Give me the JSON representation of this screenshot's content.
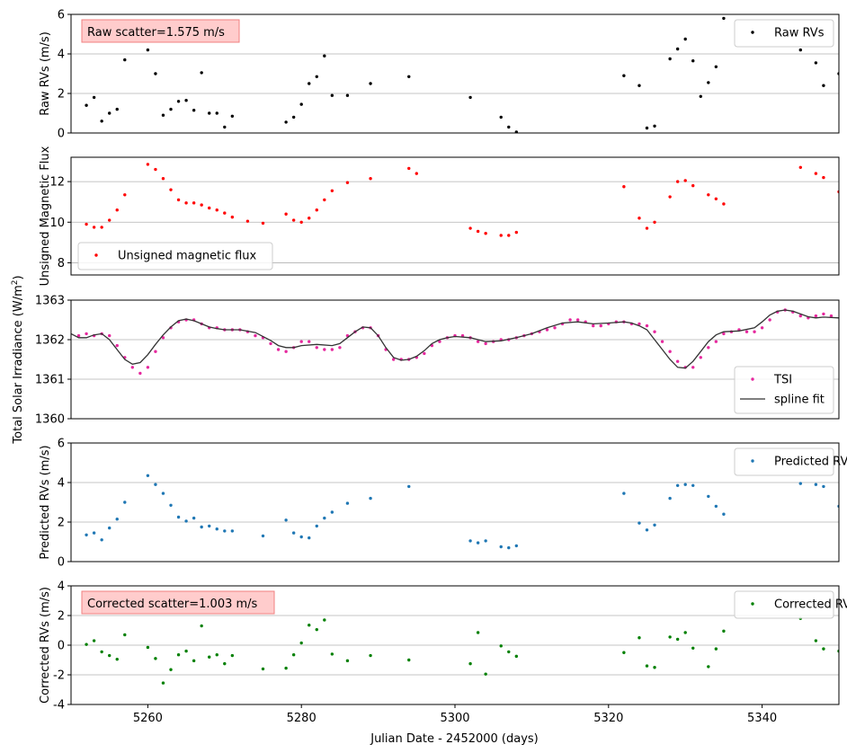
{
  "figure": {
    "xlabel": "Julian Date - 2452000 (days)"
  },
  "chart_data": [
    {
      "type": "scatter",
      "ylabel": "Raw RVs (m/s)",
      "xlim": [
        5250,
        5350
      ],
      "ylim": [
        0,
        6
      ],
      "yticks": [
        0,
        2,
        4,
        6
      ],
      "grid": "horizontal",
      "annotation": "Raw scatter=1.575 m/s",
      "legend_position": "top-right",
      "series": [
        {
          "name": "Raw RVs",
          "color": "#000000",
          "style": "points",
          "x": [
            5252,
            5253,
            5254,
            5255,
            5256,
            5257,
            5260,
            5261,
            5262,
            5263,
            5264,
            5265,
            5266,
            5267,
            5268,
            5269,
            5270,
            5271,
            5278,
            5279,
            5280,
            5281,
            5282,
            5283,
            5284,
            5286,
            5289,
            5294,
            5302,
            5306,
            5307,
            5308,
            5322,
            5324,
            5325,
            5326,
            5328,
            5329,
            5330,
            5331,
            5332,
            5333,
            5334,
            5335,
            5345,
            5347,
            5348,
            5350
          ],
          "y": [
            1.4,
            1.8,
            0.6,
            1.0,
            1.2,
            3.7,
            4.2,
            3.0,
            0.9,
            1.2,
            1.6,
            1.65,
            1.15,
            3.05,
            1.0,
            1.0,
            0.3,
            0.85,
            0.55,
            0.8,
            1.45,
            2.5,
            2.85,
            3.9,
            1.9,
            1.9,
            2.5,
            2.85,
            1.8,
            0.8,
            0.3,
            0.05,
            2.9,
            2.4,
            0.25,
            0.35,
            3.75,
            4.25,
            4.75,
            3.65,
            1.85,
            2.55,
            3.35,
            5.8,
            4.2,
            3.55,
            2.4,
            3.0
          ]
        }
      ]
    },
    {
      "type": "scatter",
      "ylabel": "Unsigned Magnetic Flux",
      "xlim": [
        5250,
        5350
      ],
      "ylim": [
        7.4,
        13.2
      ],
      "yticks": [
        8,
        10,
        12
      ],
      "grid": "horizontal",
      "legend_position": "bottom-left",
      "series": [
        {
          "name": "Unsigned magnetic flux",
          "color": "#ff0000",
          "style": "points",
          "x": [
            5252,
            5253,
            5254,
            5255,
            5256,
            5257,
            5260,
            5261,
            5262,
            5263,
            5264,
            5265,
            5266,
            5267,
            5268,
            5269,
            5270,
            5271,
            5273,
            5275,
            5278,
            5279,
            5280,
            5281,
            5282,
            5283,
            5284,
            5286,
            5289,
            5294,
            5295,
            5302,
            5303,
            5304,
            5306,
            5307,
            5308,
            5322,
            5324,
            5325,
            5326,
            5328,
            5329,
            5330,
            5331,
            5333,
            5334,
            5335,
            5345,
            5347,
            5348,
            5350
          ],
          "y": [
            9.9,
            9.75,
            9.75,
            10.1,
            10.6,
            11.35,
            12.85,
            12.6,
            12.15,
            11.6,
            11.1,
            10.95,
            10.95,
            10.85,
            10.7,
            10.6,
            10.45,
            10.25,
            10.05,
            9.95,
            10.4,
            10.1,
            10.0,
            10.2,
            10.6,
            11.1,
            11.55,
            11.95,
            12.15,
            12.65,
            12.4,
            9.7,
            9.55,
            9.45,
            9.35,
            9.35,
            9.5,
            11.75,
            10.2,
            9.7,
            10.0,
            11.25,
            12.0,
            12.05,
            11.8,
            11.35,
            11.15,
            10.9,
            12.7,
            12.4,
            12.2,
            11.5
          ]
        }
      ]
    },
    {
      "type": "scatter",
      "ylabel": "Total Solar Irradiance (W/m",
      "ylabel_sup": "2",
      "ylabel_end": ")",
      "xlim": [
        5250,
        5350
      ],
      "ylim": [
        1360,
        1363
      ],
      "yticks": [
        1360,
        1361,
        1362,
        1363
      ],
      "grid": "horizontal",
      "legend_position": "bottom-right",
      "series": [
        {
          "name": "TSI",
          "color": "#e6289e",
          "style": "points",
          "x": [
            5251,
            5252,
            5253,
            5254,
            5255,
            5256,
            5257,
            5258,
            5259,
            5260,
            5261,
            5262,
            5263,
            5264,
            5265,
            5266,
            5267,
            5268,
            5269,
            5270,
            5271,
            5272,
            5273,
            5274,
            5275,
            5276,
            5277,
            5278,
            5279,
            5280,
            5281,
            5282,
            5283,
            5284,
            5285,
            5286,
            5287,
            5288,
            5289,
            5290,
            5291,
            5292,
            5293,
            5294,
            5295,
            5296,
            5297,
            5298,
            5299,
            5300,
            5301,
            5302,
            5303,
            5304,
            5305,
            5306,
            5307,
            5308,
            5309,
            5310,
            5311,
            5312,
            5313,
            5314,
            5315,
            5316,
            5317,
            5318,
            5319,
            5320,
            5321,
            5322,
            5323,
            5324,
            5325,
            5326,
            5327,
            5328,
            5329,
            5330,
            5331,
            5332,
            5333,
            5334,
            5335,
            5336,
            5337,
            5338,
            5339,
            5340,
            5341,
            5342,
            5343,
            5344,
            5345,
            5346,
            5347,
            5348,
            5349
          ],
          "y": [
            1362.1,
            1362.15,
            1362.1,
            1362.15,
            1362.1,
            1361.85,
            1361.55,
            1361.3,
            1361.15,
            1361.3,
            1361.7,
            1362.05,
            1362.3,
            1362.45,
            1362.5,
            1362.5,
            1362.4,
            1362.3,
            1362.3,
            1362.25,
            1362.25,
            1362.25,
            1362.2,
            1362.1,
            1362.05,
            1361.9,
            1361.75,
            1361.7,
            1361.8,
            1361.95,
            1361.95,
            1361.8,
            1361.75,
            1361.75,
            1361.8,
            1362.1,
            1362.2,
            1362.3,
            1362.3,
            1362.1,
            1361.75,
            1361.5,
            1361.5,
            1361.5,
            1361.55,
            1361.65,
            1361.85,
            1361.95,
            1362.05,
            1362.1,
            1362.1,
            1362.05,
            1361.95,
            1361.9,
            1361.95,
            1362.0,
            1362.0,
            1362.05,
            1362.1,
            1362.15,
            1362.2,
            1362.25,
            1362.3,
            1362.4,
            1362.5,
            1362.5,
            1362.45,
            1362.35,
            1362.35,
            1362.4,
            1362.45,
            1362.45,
            1362.4,
            1362.4,
            1362.35,
            1362.2,
            1361.95,
            1361.7,
            1361.45,
            1361.3,
            1361.3,
            1361.55,
            1361.8,
            1361.95,
            1362.15,
            1362.2,
            1362.25,
            1362.2,
            1362.2,
            1362.3,
            1362.5,
            1362.7,
            1362.75,
            1362.7,
            1362.6,
            1362.55,
            1362.6,
            1362.65,
            1362.6
          ]
        },
        {
          "name": "spline fit",
          "color": "#333333",
          "style": "line",
          "x": [
            5250,
            5251,
            5252,
            5253,
            5254,
            5255,
            5256,
            5257,
            5258,
            5259,
            5260,
            5261,
            5262,
            5263,
            5264,
            5265,
            5266,
            5267,
            5268,
            5269,
            5270,
            5272,
            5274,
            5276,
            5277,
            5278,
            5279,
            5280,
            5282,
            5284,
            5285,
            5286,
            5287,
            5288,
            5289,
            5290,
            5291,
            5292,
            5293,
            5294,
            5295,
            5296,
            5297,
            5298,
            5299,
            5300,
            5302,
            5304,
            5306,
            5308,
            5310,
            5312,
            5314,
            5316,
            5318,
            5320,
            5322,
            5323,
            5324,
            5325,
            5326,
            5327,
            5328,
            5329,
            5330,
            5331,
            5332,
            5333,
            5334,
            5335,
            5337,
            5339,
            5340,
            5341,
            5342,
            5343,
            5344,
            5345,
            5346,
            5347,
            5348,
            5350
          ],
          "y": [
            1362.15,
            1362.05,
            1362.05,
            1362.12,
            1362.15,
            1362.0,
            1361.75,
            1361.5,
            1361.38,
            1361.42,
            1361.62,
            1361.88,
            1362.12,
            1362.32,
            1362.48,
            1362.52,
            1362.48,
            1362.4,
            1362.32,
            1362.28,
            1362.25,
            1362.25,
            1362.18,
            1361.98,
            1361.85,
            1361.8,
            1361.8,
            1361.85,
            1361.88,
            1361.85,
            1361.9,
            1362.05,
            1362.2,
            1362.32,
            1362.3,
            1362.1,
            1361.8,
            1361.55,
            1361.48,
            1361.5,
            1361.58,
            1361.72,
            1361.9,
            1362.0,
            1362.05,
            1362.08,
            1362.05,
            1361.95,
            1361.97,
            1362.05,
            1362.15,
            1362.3,
            1362.42,
            1362.45,
            1362.4,
            1362.42,
            1362.45,
            1362.42,
            1362.35,
            1362.25,
            1362.0,
            1361.75,
            1361.5,
            1361.3,
            1361.28,
            1361.45,
            1361.7,
            1361.95,
            1362.12,
            1362.2,
            1362.22,
            1362.3,
            1362.45,
            1362.62,
            1362.72,
            1362.75,
            1362.72,
            1362.65,
            1362.58,
            1362.55,
            1362.57,
            1362.55
          ]
        }
      ]
    },
    {
      "type": "scatter",
      "ylabel": "Predicted RVs (m/s)",
      "xlim": [
        5250,
        5350
      ],
      "ylim": [
        0,
        6
      ],
      "yticks": [
        0,
        2,
        4,
        6
      ],
      "grid": "horizontal",
      "legend_position": "top-right",
      "series": [
        {
          "name": "Predicted RVs",
          "color": "#1f77b4",
          "style": "points",
          "x": [
            5252,
            5253,
            5254,
            5255,
            5256,
            5257,
            5260,
            5261,
            5262,
            5263,
            5264,
            5265,
            5266,
            5267,
            5268,
            5269,
            5270,
            5271,
            5275,
            5278,
            5279,
            5280,
            5281,
            5282,
            5283,
            5284,
            5286,
            5289,
            5294,
            5302,
            5303,
            5304,
            5306,
            5307,
            5308,
            5322,
            5324,
            5325,
            5326,
            5328,
            5329,
            5330,
            5331,
            5333,
            5334,
            5335,
            5345,
            5347,
            5348,
            5350
          ],
          "y": [
            1.35,
            1.45,
            1.1,
            1.7,
            2.15,
            3.0,
            4.35,
            3.9,
            3.45,
            2.85,
            2.25,
            2.05,
            2.2,
            1.75,
            1.8,
            1.65,
            1.55,
            1.55,
            1.3,
            2.1,
            1.45,
            1.25,
            1.2,
            1.8,
            2.2,
            2.5,
            2.95,
            3.2,
            3.8,
            1.05,
            0.95,
            1.05,
            0.75,
            0.7,
            0.8,
            3.45,
            1.95,
            1.6,
            1.85,
            3.2,
            3.85,
            3.9,
            3.85,
            3.3,
            2.8,
            2.4,
            3.95,
            3.9,
            3.8,
            2.8
          ]
        }
      ]
    },
    {
      "type": "scatter",
      "ylabel": "Corrected RVs (m/s)",
      "xlabel": "Julian Date - 2452000 (days)",
      "xlim": [
        5250,
        5350
      ],
      "ylim": [
        -4,
        4
      ],
      "yticks": [
        -4,
        -2,
        0,
        2,
        4
      ],
      "xticks": [
        5260,
        5280,
        5300,
        5320,
        5340
      ],
      "grid": "horizontal",
      "annotation": "Corrected scatter=1.003 m/s",
      "legend_position": "top-right",
      "series": [
        {
          "name": "Corrected RVs",
          "color": "#008000",
          "style": "points",
          "x": [
            5252,
            5253,
            5254,
            5255,
            5256,
            5257,
            5260,
            5261,
            5262,
            5263,
            5264,
            5265,
            5266,
            5267,
            5268,
            5269,
            5270,
            5271,
            5275,
            5278,
            5279,
            5280,
            5281,
            5282,
            5283,
            5284,
            5286,
            5289,
            5294,
            5302,
            5303,
            5304,
            5306,
            5307,
            5308,
            5322,
            5324,
            5325,
            5326,
            5328,
            5329,
            5330,
            5331,
            5333,
            5334,
            5335,
            5345,
            5347,
            5348,
            5350
          ],
          "y": [
            0.05,
            0.3,
            -0.45,
            -0.7,
            -0.95,
            0.7,
            -0.15,
            -0.9,
            -2.55,
            -1.65,
            -0.65,
            -0.4,
            -1.05,
            1.3,
            -0.8,
            -0.65,
            -1.25,
            -0.7,
            -1.6,
            -1.55,
            -0.65,
            0.15,
            1.35,
            1.05,
            1.7,
            -0.6,
            -1.05,
            -0.7,
            -1.0,
            -1.25,
            0.85,
            -1.95,
            -0.05,
            -0.45,
            -0.75,
            -0.5,
            0.5,
            -1.4,
            -1.5,
            0.55,
            0.4,
            0.85,
            -0.2,
            -1.45,
            -0.25,
            0.95,
            1.8,
            0.3,
            -0.25,
            -0.4
          ]
        }
      ]
    }
  ]
}
